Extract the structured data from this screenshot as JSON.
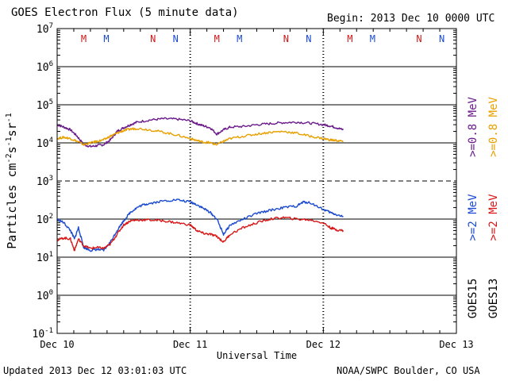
{
  "chart_data": {
    "type": "line",
    "title": "GOES Electron Flux (5 minute data)",
    "begin_label": "Begin: 2013 Dec 10 0000 UTC",
    "xlabel": "Universal Time",
    "ylabel_parts": [
      "Particles cm",
      "-2",
      "s",
      "-1",
      "sr",
      "-1"
    ],
    "yscale": "log",
    "ylim_exponents": [
      -1,
      7
    ],
    "yticks": [
      {
        "base": "10",
        "exp": "7"
      },
      {
        "base": "10",
        "exp": "6"
      },
      {
        "base": "10",
        "exp": "5"
      },
      {
        "base": "10",
        "exp": "4"
      },
      {
        "base": "10",
        "exp": "3"
      },
      {
        "base": "10",
        "exp": "2"
      },
      {
        "base": "10",
        "exp": "1"
      },
      {
        "base": "10",
        "exp": "0"
      },
      {
        "base": "10",
        "exp": "-1"
      }
    ],
    "x_unit": "days since 2013 Dec 10 0000 UTC",
    "xlim": [
      0,
      3
    ],
    "xticks": [
      {
        "label": "Dec 10",
        "day": 0
      },
      {
        "label": "Dec 11",
        "day": 1
      },
      {
        "label": "Dec 12",
        "day": 2
      },
      {
        "label": "Dec 13",
        "day": 3
      }
    ],
    "markers": [
      {
        "label": "M",
        "day": 0.2,
        "color": "#d01818"
      },
      {
        "label": "M",
        "day": 0.37,
        "color": "#1a4ad0"
      },
      {
        "label": "N",
        "day": 0.72,
        "color": "#d01818"
      },
      {
        "label": "N",
        "day": 0.89,
        "color": "#1a4ad0"
      },
      {
        "label": "M",
        "day": 1.2,
        "color": "#d01818"
      },
      {
        "label": "M",
        "day": 1.37,
        "color": "#1a4ad0"
      },
      {
        "label": "N",
        "day": 1.72,
        "color": "#d01818"
      },
      {
        "label": "N",
        "day": 1.89,
        "color": "#1a4ad0"
      },
      {
        "label": "M",
        "day": 2.2,
        "color": "#d01818"
      },
      {
        "label": "M",
        "day": 2.37,
        "color": "#1a4ad0"
      },
      {
        "label": "N",
        "day": 2.72,
        "color": "#d01818"
      },
      {
        "label": "N",
        "day": 2.89,
        "color": "#1a4ad0"
      }
    ],
    "series": [
      {
        "name": "GOES15 >=0.8 MeV",
        "color": "#6a1a8a",
        "x": [
          0,
          0.05,
          0.1,
          0.15,
          0.2,
          0.25,
          0.3,
          0.35,
          0.4,
          0.45,
          0.5,
          0.55,
          0.6,
          0.7,
          0.8,
          0.9,
          1.0,
          1.05,
          1.1,
          1.15,
          1.2,
          1.25,
          1.3,
          1.4,
          1.5,
          1.6,
          1.7,
          1.8,
          1.9,
          2.0,
          2.05,
          2.1,
          2.15
        ],
        "values": [
          30000,
          26000,
          22000,
          15000,
          9000,
          8000,
          8500,
          9000,
          12000,
          20000,
          25000,
          30000,
          35000,
          40000,
          43000,
          42000,
          38000,
          32000,
          28000,
          25000,
          17000,
          22000,
          26000,
          27000,
          30000,
          32000,
          34000,
          35000,
          33000,
          30000,
          28000,
          25000,
          22000
        ]
      },
      {
        "name": "GOES13 >=0.8 MeV",
        "color": "#e8a000",
        "x": [
          0,
          0.05,
          0.1,
          0.15,
          0.2,
          0.25,
          0.3,
          0.35,
          0.4,
          0.45,
          0.5,
          0.55,
          0.6,
          0.7,
          0.8,
          0.9,
          1.0,
          1.05,
          1.1,
          1.15,
          1.2,
          1.25,
          1.3,
          1.4,
          1.5,
          1.6,
          1.7,
          1.8,
          1.9,
          2.0,
          2.05,
          2.1,
          2.15
        ],
        "values": [
          13000,
          14000,
          13000,
          11000,
          9000,
          10000,
          11000,
          12000,
          15000,
          18000,
          21000,
          23000,
          24000,
          22000,
          19000,
          16000,
          13000,
          11500,
          10500,
          10000,
          9000,
          11000,
          13000,
          15000,
          17000,
          19000,
          20000,
          18000,
          15000,
          13000,
          12000,
          11500,
          11000
        ]
      },
      {
        "name": "GOES15 >=2 MeV",
        "color": "#1a4ad0",
        "x": [
          0,
          0.05,
          0.1,
          0.13,
          0.16,
          0.2,
          0.25,
          0.3,
          0.35,
          0.4,
          0.45,
          0.5,
          0.55,
          0.6,
          0.65,
          0.7,
          0.8,
          0.9,
          1.0,
          1.05,
          1.1,
          1.15,
          1.2,
          1.25,
          1.3,
          1.4,
          1.5,
          1.6,
          1.7,
          1.8,
          1.85,
          1.9,
          2.0,
          2.05,
          2.1,
          2.15
        ],
        "values": [
          100,
          80,
          50,
          30,
          60,
          18,
          15,
          16,
          15,
          25,
          50,
          90,
          150,
          200,
          240,
          260,
          300,
          320,
          280,
          240,
          190,
          150,
          100,
          40,
          70,
          100,
          140,
          170,
          200,
          220,
          280,
          270,
          180,
          150,
          130,
          115
        ]
      },
      {
        "name": "GOES13 >=2 MeV",
        "color": "#d81818",
        "x": [
          0,
          0.05,
          0.1,
          0.13,
          0.16,
          0.2,
          0.25,
          0.3,
          0.35,
          0.4,
          0.45,
          0.5,
          0.55,
          0.6,
          0.7,
          0.8,
          0.9,
          1.0,
          1.05,
          1.1,
          1.15,
          1.2,
          1.25,
          1.3,
          1.4,
          1.5,
          1.6,
          1.7,
          1.8,
          1.9,
          2.0,
          2.05,
          2.1,
          2.15
        ],
        "values": [
          28,
          32,
          30,
          15,
          30,
          20,
          17,
          18,
          17,
          22,
          40,
          70,
          90,
          95,
          95,
          90,
          80,
          70,
          50,
          42,
          40,
          35,
          25,
          40,
          60,
          80,
          100,
          110,
          100,
          95,
          80,
          60,
          52,
          50
        ]
      }
    ],
    "legend_right": [
      {
        "prefix": ">=0.8",
        "unit": "MeV",
        "satellite": "GOES15",
        "color": "#6a1a8a"
      },
      {
        "prefix": ">=0.8",
        "unit": "MeV",
        "satellite": "GOES13",
        "color": "#e8a000"
      },
      {
        "prefix": ">=2",
        "unit": "MeV",
        "satellite": "GOES15",
        "color": "#1a4ad0"
      },
      {
        "prefix": ">=2",
        "unit": "MeV",
        "satellite": "GOES13",
        "color": "#d81818"
      }
    ],
    "dashed_reference": {
      "exponent": 3
    }
  },
  "footer": {
    "updated": "Updated 2013 Dec 12 03:01:03 UTC",
    "credit": "NOAA/SWPC Boulder, CO USA"
  }
}
